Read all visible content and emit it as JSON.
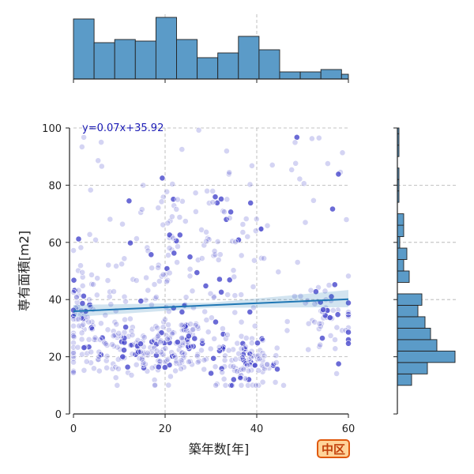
{
  "chart_data": {
    "type": "scatter",
    "xlabel": "築年数[年]",
    "ylabel": "専有面積[m2]",
    "xlim": [
      0,
      60
    ],
    "ylim": [
      0,
      100
    ],
    "x_ticks": [
      "0",
      "20",
      "40",
      "60"
    ],
    "y_ticks": [
      "0",
      "20",
      "40",
      "60",
      "80",
      "100"
    ],
    "grid": true,
    "annotation": "y=0.07x+35.92",
    "regression": {
      "slope": 0.07,
      "intercept": 35.92
    },
    "marker_color": "#3a3ac8",
    "line_color": "#1f77b4",
    "hist_color": "#5b9bc8",
    "x_histogram": {
      "bin_edges": [
        0,
        4.5,
        9,
        13.5,
        18,
        22.5,
        27,
        31.5,
        36,
        40.5,
        45,
        49.5,
        54,
        58.5,
        60
      ],
      "counts": [
        76,
        46,
        50,
        48,
        78,
        50,
        27,
        33,
        54,
        37,
        9,
        9,
        12,
        6
      ]
    },
    "y_histogram": {
      "bin_edges": [
        10,
        14,
        18,
        22,
        26,
        30,
        34,
        38,
        42,
        46,
        50,
        54,
        58,
        62,
        66,
        70,
        74,
        78,
        82,
        86,
        90,
        94,
        98,
        100
      ],
      "counts": [
        18,
        38,
        73,
        50,
        42,
        35,
        26,
        31,
        0,
        15,
        8,
        12,
        3,
        8,
        8,
        0,
        2,
        2,
        2,
        0,
        2,
        2,
        2
      ]
    }
  },
  "badge_text": "中区"
}
